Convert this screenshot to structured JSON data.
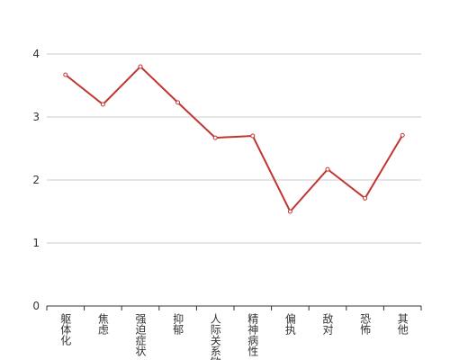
{
  "chart_data": {
    "type": "line",
    "categories": [
      "躯体化",
      "焦虑",
      "强迫症状",
      "抑郁",
      "人际关系敏感",
      "精神病性",
      "偏执",
      "敌对",
      "恐怖",
      "其他"
    ],
    "series": [
      {
        "color": "#c23531",
        "values": [
          3.67,
          3.2,
          3.8,
          3.23,
          2.67,
          2.7,
          1.5,
          2.17,
          1.71,
          2.71
        ]
      }
    ],
    "ylim": [
      0,
      4
    ],
    "yticks": [
      0,
      1,
      2,
      3,
      4
    ],
    "grid": true
  }
}
